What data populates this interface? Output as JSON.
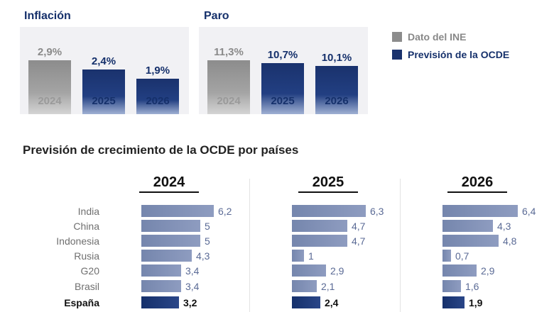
{
  "chart_data": [
    {
      "type": "bar",
      "title": "Inflación",
      "categories": [
        "2024",
        "2025",
        "2026"
      ],
      "values": [
        2.9,
        2.4,
        1.9
      ],
      "labels": [
        "2,9%",
        "2,4%",
        "1,9%"
      ],
      "series_of_category": [
        "Dato del INE",
        "Previsión de la OCDE",
        "Previsión de la OCDE"
      ],
      "ylim": [
        0,
        3.5
      ]
    },
    {
      "type": "bar",
      "title": "Paro",
      "categories": [
        "2024",
        "2025",
        "2026"
      ],
      "values": [
        11.3,
        10.7,
        10.1
      ],
      "labels": [
        "11,3%",
        "10,7%",
        "10,1%"
      ],
      "series_of_category": [
        "Dato del INE",
        "Previsión de la OCDE",
        "Previsión de la OCDE"
      ],
      "ylim": [
        0,
        13.7
      ]
    },
    {
      "type": "bar",
      "orientation": "horizontal",
      "title": "Previsión de crecimiento de la OCDE por países",
      "categories": [
        "India",
        "China",
        "Indonesia",
        "Rusia",
        "G20",
        "Brasil",
        "España"
      ],
      "highlight": "España",
      "xlim": [
        0,
        6.8
      ],
      "panels": [
        {
          "year": "2024",
          "values": [
            6.2,
            5,
            5,
            4.3,
            3.4,
            3.4,
            3.2
          ],
          "labels": [
            "6,2",
            "5",
            "5",
            "4,3",
            "3,4",
            "3,4",
            "3,2"
          ]
        },
        {
          "year": "2025",
          "values": [
            6.3,
            4.7,
            4.7,
            1,
            2.9,
            2.1,
            2.4
          ],
          "labels": [
            "6,3",
            "4,7",
            "4,7",
            "1",
            "2,9",
            "2,1",
            "2,4"
          ]
        },
        {
          "year": "2026",
          "values": [
            6.4,
            4.3,
            4.8,
            0.7,
            2.9,
            1.6,
            1.9
          ],
          "labels": [
            "6,4",
            "4,3",
            "4,8",
            "0,7",
            "2,9",
            "1,6",
            "1,9"
          ]
        }
      ]
    }
  ],
  "legend": [
    {
      "label": "Dato del INE",
      "color": "#8c8c8c"
    },
    {
      "label": "Previsión de la OCDE",
      "color": "#1a326d"
    }
  ]
}
